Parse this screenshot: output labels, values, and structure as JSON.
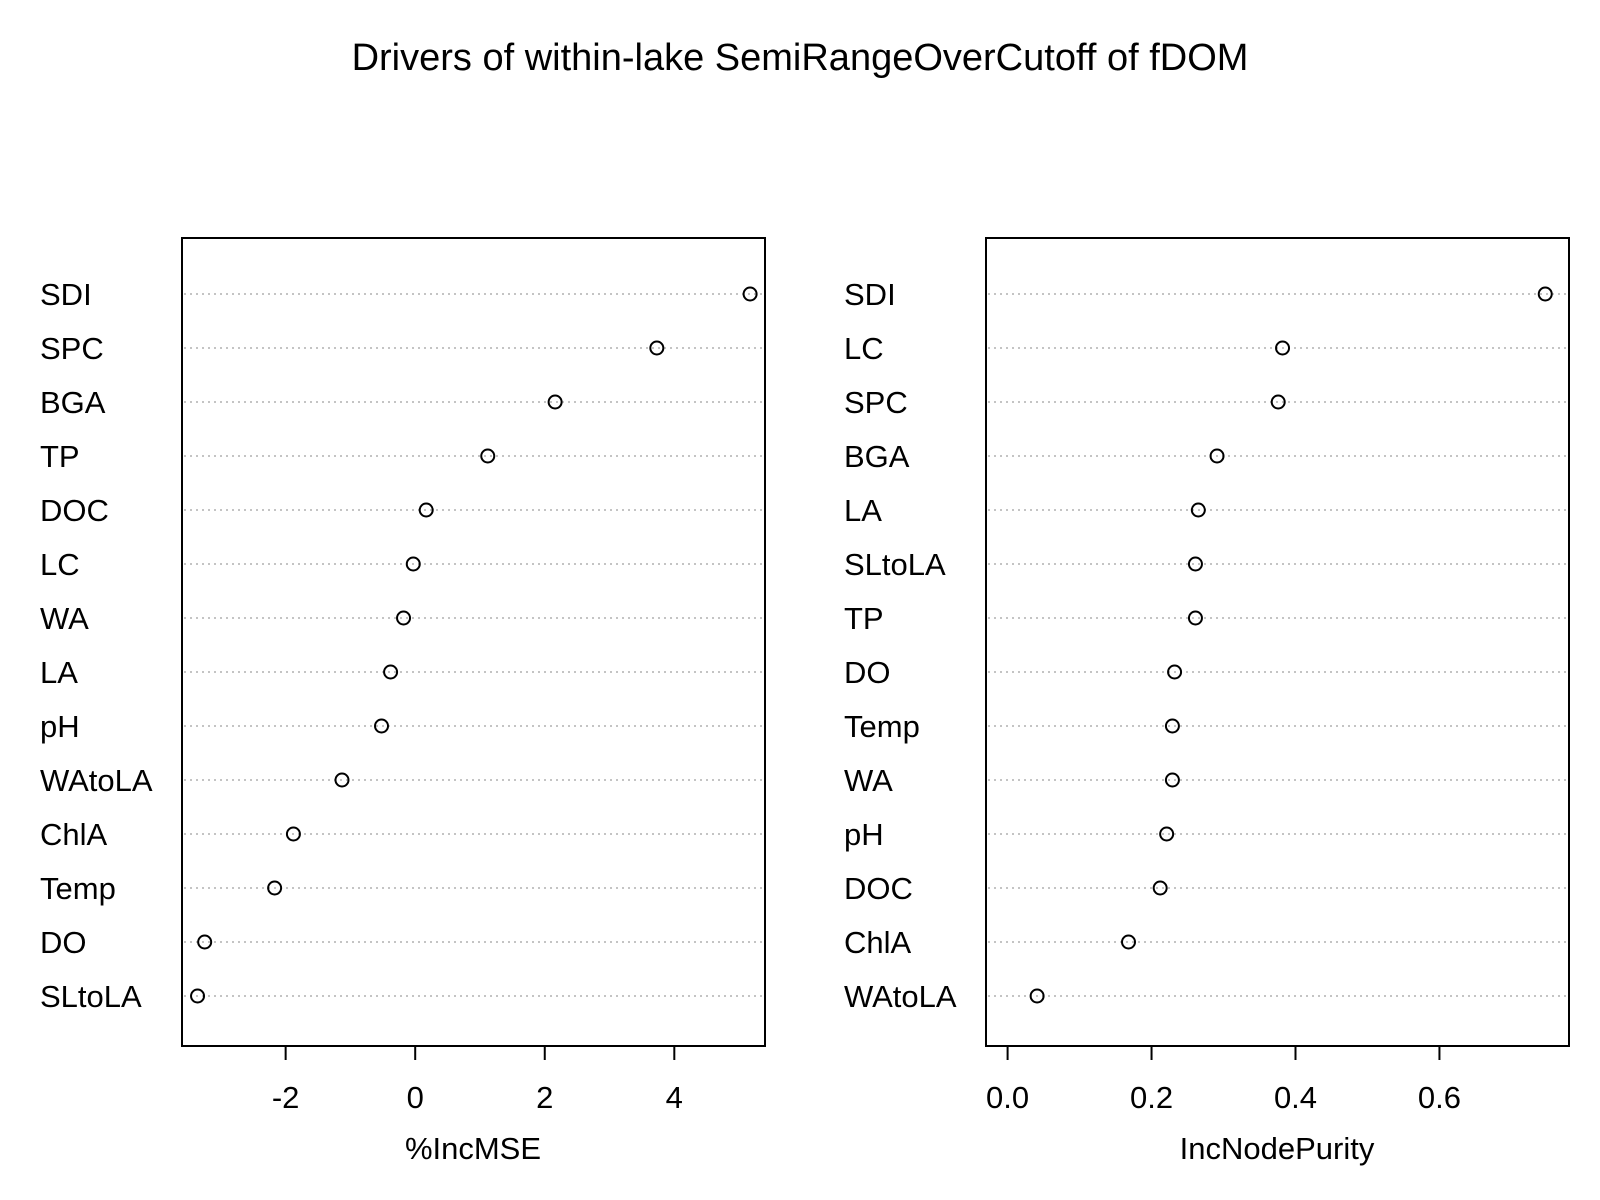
{
  "title": "Drivers of within-lake SemiRangeOverCutoff of fDOM",
  "chart_data": [
    {
      "type": "scatter",
      "variant": "dotchart",
      "xlabel": "%IncMSE",
      "ylabel": "",
      "xlim": [
        -3.6,
        5.4
      ],
      "xticks": [
        -2,
        0,
        2,
        4
      ],
      "xtick_labels": [
        "-2",
        "0",
        "2",
        "4"
      ],
      "grid": "dotted horizontal",
      "marker": "open circle",
      "categories": [
        "SDI",
        "SPC",
        "BGA",
        "TP",
        "DOC",
        "LC",
        "WA",
        "LA",
        "pH",
        "WAtoLA",
        "ChlA",
        "Temp",
        "DO",
        "SLtoLA"
      ],
      "values": [
        5.17,
        3.73,
        2.16,
        1.12,
        0.17,
        -0.03,
        -0.18,
        -0.38,
        -0.52,
        -1.13,
        -1.88,
        -2.17,
        -3.25,
        -3.36
      ]
    },
    {
      "type": "scatter",
      "variant": "dotchart",
      "xlabel": "IncNodePurity",
      "ylabel": "",
      "xlim": [
        -0.03,
        0.78
      ],
      "xticks": [
        0.0,
        0.2,
        0.4,
        0.6
      ],
      "xtick_labels": [
        "0.0",
        "0.2",
        "0.4",
        "0.6"
      ],
      "grid": "dotted horizontal",
      "marker": "open circle",
      "categories": [
        "SDI",
        "LC",
        "SPC",
        "BGA",
        "LA",
        "SLtoLA",
        "TP",
        "DO",
        "Temp",
        "WA",
        "pH",
        "DOC",
        "ChlA",
        "WAtoLA"
      ],
      "values": [
        0.747,
        0.382,
        0.376,
        0.291,
        0.265,
        0.261,
        0.261,
        0.232,
        0.229,
        0.229,
        0.221,
        0.212,
        0.168,
        0.041
      ]
    }
  ]
}
